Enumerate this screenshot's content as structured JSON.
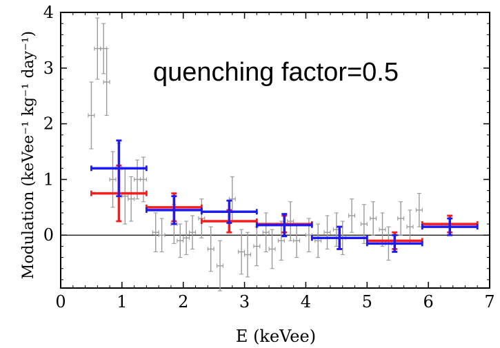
{
  "chart_data": {
    "type": "scatter",
    "title": "",
    "annotation": "quenching factor=0.5",
    "xlabel": "E (keVee)",
    "ylabel": "Modulation (keVee⁻¹ kg⁻¹ day⁻¹)",
    "xlim": [
      0,
      7
    ],
    "ylim": [
      -0.95,
      4
    ],
    "xticks": [
      0,
      1,
      2,
      3,
      4,
      5,
      6,
      7
    ],
    "yticks": [
      0,
      1,
      2,
      3,
      4
    ],
    "grid": false,
    "reference_line_y": 0,
    "colors": {
      "gray": "#9a9a9a",
      "red": "#ff1a1a",
      "blue": "#1a1aff",
      "axis": "#000000"
    },
    "series": [
      {
        "color": "gray",
        "points": [
          {
            "x": 0.5,
            "y": 2.15,
            "err": 0.6,
            "xerr": 0.05
          },
          {
            "x": 0.6,
            "y": 3.35,
            "err": 0.55,
            "xerr": 0.05
          },
          {
            "x": 0.7,
            "y": 3.35,
            "err": 0.45,
            "xerr": 0.05
          },
          {
            "x": 0.75,
            "y": 2.75,
            "err": 0.6,
            "xerr": 0.05
          },
          {
            "x": 0.85,
            "y": 1.0,
            "err": 0.5,
            "xerr": 0.05
          },
          {
            "x": 0.95,
            "y": 1.2,
            "err": 0.45,
            "xerr": 0.05
          },
          {
            "x": 1.05,
            "y": 0.7,
            "err": 0.5,
            "xerr": 0.05
          },
          {
            "x": 1.15,
            "y": 0.65,
            "err": 0.4,
            "xerr": 0.05
          },
          {
            "x": 1.25,
            "y": 1.0,
            "err": 0.35,
            "xerr": 0.05
          },
          {
            "x": 1.35,
            "y": 1.0,
            "err": 0.4,
            "xerr": 0.05
          },
          {
            "x": 1.55,
            "y": 0.05,
            "err": 0.35,
            "xerr": 0.05
          },
          {
            "x": 1.65,
            "y": 0.0,
            "err": 0.3,
            "xerr": 0.05
          },
          {
            "x": 1.85,
            "y": 0.2,
            "err": 0.35,
            "xerr": 0.05
          },
          {
            "x": 1.95,
            "y": -0.1,
            "err": 0.3,
            "xerr": 0.05
          },
          {
            "x": 2.05,
            "y": -0.05,
            "err": 0.3,
            "xerr": 0.05
          },
          {
            "x": 2.15,
            "y": 0.05,
            "err": 0.3,
            "xerr": 0.05
          },
          {
            "x": 2.3,
            "y": 0.3,
            "err": 0.35,
            "xerr": 0.05
          },
          {
            "x": 2.45,
            "y": -0.25,
            "err": 0.4,
            "xerr": 0.05
          },
          {
            "x": 2.6,
            "y": -0.55,
            "err": 0.45,
            "xerr": 0.05
          },
          {
            "x": 2.8,
            "y": 0.65,
            "err": 0.4,
            "xerr": 0.05
          },
          {
            "x": 2.95,
            "y": -0.3,
            "err": 0.4,
            "xerr": 0.05
          },
          {
            "x": 3.05,
            "y": -0.35,
            "err": 0.4,
            "xerr": 0.05
          },
          {
            "x": 3.2,
            "y": -0.2,
            "err": 0.35,
            "xerr": 0.05
          },
          {
            "x": 3.35,
            "y": 0.05,
            "err": 0.35,
            "xerr": 0.05
          },
          {
            "x": 3.45,
            "y": -0.25,
            "err": 0.35,
            "xerr": 0.05
          },
          {
            "x": 3.6,
            "y": -0.1,
            "err": 0.35,
            "xerr": 0.05
          },
          {
            "x": 3.75,
            "y": 0.25,
            "err": 0.35,
            "xerr": 0.05
          },
          {
            "x": 3.85,
            "y": -0.1,
            "err": 0.3,
            "xerr": 0.05
          },
          {
            "x": 4.05,
            "y": 0.0,
            "err": 0.3,
            "xerr": 0.05
          },
          {
            "x": 4.2,
            "y": -0.1,
            "err": 0.3,
            "xerr": 0.05
          },
          {
            "x": 4.35,
            "y": 0.05,
            "err": 0.3,
            "xerr": 0.05
          },
          {
            "x": 4.5,
            "y": 0.1,
            "err": 0.3,
            "xerr": 0.05
          },
          {
            "x": 4.6,
            "y": -0.05,
            "err": 0.3,
            "xerr": 0.05
          },
          {
            "x": 4.75,
            "y": 0.35,
            "err": 0.3,
            "xerr": 0.05
          },
          {
            "x": 4.95,
            "y": 0.2,
            "err": 0.35,
            "xerr": 0.05
          },
          {
            "x": 5.1,
            "y": 0.3,
            "err": 0.3,
            "xerr": 0.05
          },
          {
            "x": 5.25,
            "y": 0.1,
            "err": 0.3,
            "xerr": 0.05
          },
          {
            "x": 5.35,
            "y": -0.15,
            "err": 0.3,
            "xerr": 0.05
          },
          {
            "x": 5.55,
            "y": 0.3,
            "err": 0.3,
            "xerr": 0.05
          },
          {
            "x": 5.7,
            "y": 0.15,
            "err": 0.3,
            "xerr": 0.05
          },
          {
            "x": 5.85,
            "y": 0.45,
            "err": 0.3,
            "xerr": 0.05
          }
        ]
      },
      {
        "color": "red",
        "points": [
          {
            "x": 0.95,
            "y": 0.75,
            "xerr": 0.45,
            "err": 0.5
          },
          {
            "x": 1.85,
            "y": 0.5,
            "xerr": 0.45,
            "err": 0.25
          },
          {
            "x": 2.75,
            "y": 0.25,
            "xerr": 0.45,
            "err": 0.2
          },
          {
            "x": 3.65,
            "y": 0.2,
            "xerr": 0.45,
            "err": 0.15
          },
          {
            "x": 4.55,
            "y": -0.05,
            "xerr": 0.45,
            "err": 0.2
          },
          {
            "x": 5.45,
            "y": -0.1,
            "xerr": 0.45,
            "err": 0.15
          },
          {
            "x": 6.35,
            "y": 0.2,
            "xerr": 0.45,
            "err": 0.15
          }
        ]
      },
      {
        "color": "blue",
        "points": [
          {
            "x": 0.95,
            "y": 1.2,
            "xerr": 0.45,
            "err": 0.5
          },
          {
            "x": 1.85,
            "y": 0.45,
            "xerr": 0.45,
            "err": 0.25
          },
          {
            "x": 2.75,
            "y": 0.42,
            "xerr": 0.45,
            "err": 0.2
          },
          {
            "x": 3.65,
            "y": 0.18,
            "xerr": 0.45,
            "err": 0.2
          },
          {
            "x": 4.55,
            "y": -0.05,
            "xerr": 0.45,
            "err": 0.2
          },
          {
            "x": 5.45,
            "y": -0.15,
            "xerr": 0.45,
            "err": 0.15
          },
          {
            "x": 6.35,
            "y": 0.15,
            "xerr": 0.45,
            "err": 0.15
          }
        ]
      }
    ]
  }
}
